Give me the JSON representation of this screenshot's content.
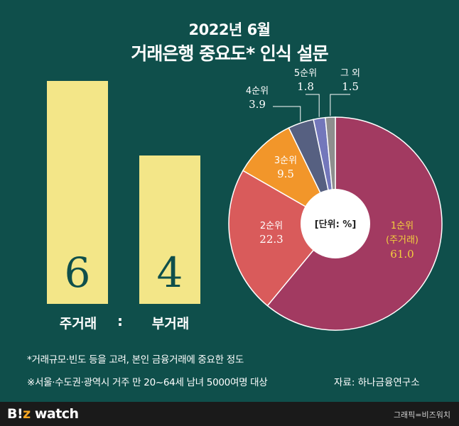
{
  "header": {
    "line1": "2022년 6월",
    "line2": "거래은행 중요도* 인식 설문"
  },
  "chart_data": [
    {
      "type": "bar",
      "categories": [
        "주거래",
        "부거래"
      ],
      "values": [
        6,
        4
      ],
      "value_labels": [
        "6",
        "4"
      ],
      "separator": ":",
      "ylim": [
        0,
        6
      ],
      "colors": {
        "bar": "#f3e688",
        "value": "#0f4f4b"
      }
    },
    {
      "type": "pie",
      "unit_label": "[단위: %]",
      "slices": [
        {
          "label": "1순위",
          "sublabel": "(주거래)",
          "value": 61.0,
          "value_text": "61.0",
          "color": "#a23a61",
          "text_color": "#f3cf3d"
        },
        {
          "label": "2순위",
          "value": 22.3,
          "value_text": "22.3",
          "color": "#d95b5b",
          "text_color": "#ffffff"
        },
        {
          "label": "3순위",
          "value": 9.5,
          "value_text": "9.5",
          "color": "#f2962a",
          "text_color": "#ffffff"
        },
        {
          "label": "4순위",
          "value": 3.9,
          "value_text": "3.9",
          "color": "#566081",
          "text_color": "#ffffff"
        },
        {
          "label": "5순위",
          "value": 1.8,
          "value_text": "1.8",
          "color": "#7377bb",
          "text_color": "#ffffff"
        },
        {
          "label": "그 외",
          "value": 1.5,
          "value_text": "1.5",
          "color": "#8e8e8e",
          "text_color": "#ffffff"
        }
      ]
    }
  ],
  "notes": {
    "footnote": "*거래규모·빈도 등을 고려, 본인 금융거래에 중요한 정도",
    "survey": "※서울·수도권·광역시 거주 만 20~64세 남녀 5000여명 대상",
    "source": "자료: 하나금융연구소"
  },
  "footer": {
    "logo_b": "B",
    "logo_i": "!",
    "logo_z": "z",
    "logo_rest": " watch",
    "credit": "그래픽=비즈워치"
  }
}
